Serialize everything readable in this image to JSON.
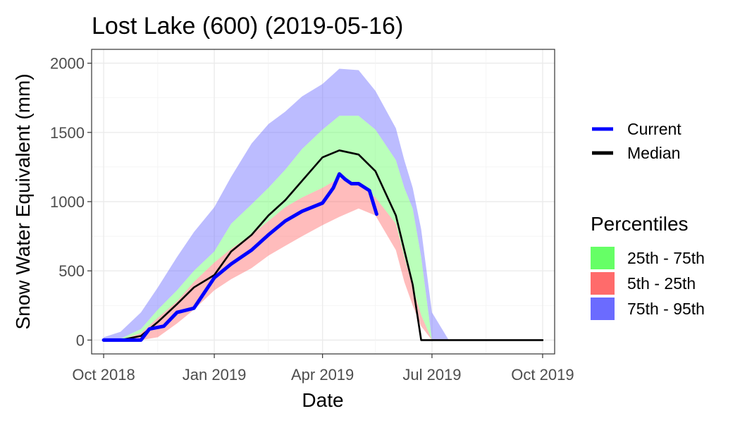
{
  "chart_data": {
    "type": "area",
    "title": "Lost Lake (600) (2019-05-16)",
    "xlabel": "Date",
    "ylabel": "Snow Water Equivalent (mm)",
    "xlim": [
      "2018-10-01",
      "2019-10-01"
    ],
    "ylim": [
      0,
      2000
    ],
    "x_ticks": [
      "Oct 2018",
      "Jan 2019",
      "Apr 2019",
      "Jul 2019",
      "Oct 2019"
    ],
    "y_ticks": [
      "0",
      "500",
      "1000",
      "1500",
      "2000"
    ],
    "grid": true,
    "legend_placement": "right",
    "legend": {
      "lines": [
        {
          "name": "Current",
          "color": "#0000ff"
        },
        {
          "name": "Median",
          "color": "#000000"
        }
      ],
      "percentiles_title": "Percentiles",
      "bands": [
        {
          "name": "25th - 75th",
          "color": "#66ff66"
        },
        {
          "name": "5th - 25th",
          "color": "#ff6b6b"
        },
        {
          "name": "75th - 95th",
          "color": "#6b6bff"
        }
      ]
    },
    "x_dates": [
      "2018-10-01",
      "2018-10-15",
      "2018-11-01",
      "2018-11-15",
      "2018-12-01",
      "2018-12-15",
      "2019-01-01",
      "2019-01-15",
      "2019-02-01",
      "2019-02-15",
      "2019-03-01",
      "2019-03-15",
      "2019-04-01",
      "2019-04-15",
      "2019-05-01",
      "2019-05-15",
      "2019-06-01",
      "2019-06-08",
      "2019-06-15",
      "2019-06-22",
      "2019-07-01",
      "2019-07-15",
      "2019-08-01",
      "2019-09-01",
      "2019-10-01"
    ],
    "bands": {
      "p5": [
        0,
        0,
        0,
        20,
        120,
        220,
        360,
        440,
        520,
        610,
        680,
        750,
        830,
        890,
        950,
        900,
        650,
        420,
        250,
        100,
        0,
        0,
        0,
        0,
        0
      ],
      "p25": [
        0,
        0,
        50,
        160,
        280,
        420,
        560,
        660,
        760,
        860,
        960,
        1030,
        1100,
        1170,
        1130,
        1030,
        840,
        600,
        380,
        180,
        0,
        0,
        0,
        0,
        0
      ],
      "p75": [
        0,
        10,
        80,
        220,
        360,
        500,
        640,
        840,
        980,
        1100,
        1230,
        1380,
        1520,
        1620,
        1620,
        1520,
        1300,
        1100,
        950,
        600,
        0,
        0,
        0,
        0,
        0
      ],
      "p95": [
        20,
        60,
        200,
        380,
        600,
        780,
        960,
        1180,
        1420,
        1560,
        1650,
        1760,
        1850,
        1960,
        1950,
        1800,
        1530,
        1300,
        1100,
        800,
        200,
        0,
        0,
        0,
        0
      ]
    },
    "series": [
      {
        "name": "Median",
        "color": "#000000",
        "x": [
          "2018-10-01",
          "2018-10-15",
          "2018-11-01",
          "2018-11-15",
          "2018-12-01",
          "2018-12-15",
          "2019-01-01",
          "2019-01-15",
          "2019-02-01",
          "2019-02-15",
          "2019-03-01",
          "2019-03-15",
          "2019-04-01",
          "2019-04-15",
          "2019-05-01",
          "2019-05-15",
          "2019-06-01",
          "2019-06-15",
          "2019-06-22",
          "2019-10-01"
        ],
        "values": [
          0,
          0,
          30,
          130,
          260,
          380,
          470,
          640,
          760,
          900,
          1010,
          1150,
          1320,
          1370,
          1340,
          1220,
          900,
          400,
          0,
          0
        ]
      },
      {
        "name": "Current",
        "color": "#0000ff",
        "x": [
          "2018-10-01",
          "2018-10-15",
          "2018-11-01",
          "2018-11-08",
          "2018-11-20",
          "2018-12-01",
          "2018-12-15",
          "2019-01-01",
          "2019-01-15",
          "2019-02-01",
          "2019-02-15",
          "2019-03-01",
          "2019-03-15",
          "2019-04-01",
          "2019-04-10",
          "2019-04-15",
          "2019-04-20",
          "2019-04-25",
          "2019-05-01",
          "2019-05-10",
          "2019-05-16"
        ],
        "values": [
          0,
          0,
          0,
          80,
          100,
          200,
          230,
          450,
          550,
          650,
          760,
          860,
          930,
          990,
          1100,
          1200,
          1160,
          1130,
          1130,
          1080,
          910
        ]
      }
    ]
  }
}
